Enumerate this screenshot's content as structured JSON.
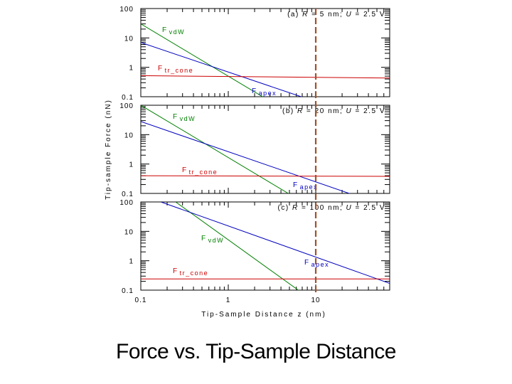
{
  "caption": "Force vs. Tip-Sample Distance",
  "chart_data": {
    "type": "line",
    "xscale": "log",
    "yscale": "log",
    "xlim": [
      0.1,
      70
    ],
    "ylim": [
      0.1,
      100
    ],
    "xlabel": "Tip-Sample Distance z (nm)",
    "ylabel": "Tip-sample Force (nN)",
    "x_tick_labels": [
      "0.1",
      "1",
      "10"
    ],
    "y_tick_labels": [
      "0.1",
      "1",
      "10",
      "100"
    ],
    "vertical_marker": {
      "x": 10,
      "color": "#a0522d",
      "style": "dashed"
    },
    "colors": {
      "vdw": "#008000",
      "apex": "#0000c0",
      "cone": "#cc0000",
      "marker": "#a0522d"
    },
    "panels": [
      {
        "title": "(a) R = 5 nm; U = 2.5 V",
        "title_parts": [
          "(a) ",
          "R",
          " = 5 nm; ",
          "U",
          " = 2.5 V"
        ],
        "series": [
          {
            "name": "FvdW",
            "label_main": "F",
            "label_sub": "vdW",
            "color": "#008000",
            "x": [
              0.1,
              2.8
            ],
            "y": [
              30,
              0.08
            ]
          },
          {
            "name": "Fapex",
            "label_main": "F",
            "label_sub": "apex",
            "color": "#0000c0",
            "x": [
              0.1,
              8.5
            ],
            "y": [
              7,
              0.08
            ]
          },
          {
            "name": "Ftr_cone",
            "label_main": "F",
            "label_sub": "tr_cone",
            "color": "#cc0000",
            "x": [
              0.1,
              70
            ],
            "y": [
              0.52,
              0.43
            ]
          }
        ]
      },
      {
        "title": "(b) R = 20 nm; U = 2.5 V",
        "title_parts": [
          "(b) ",
          "R",
          " = 20 nm; ",
          "U",
          " = 2.5 V"
        ],
        "series": [
          {
            "name": "FvdW",
            "label_main": "F",
            "label_sub": "vdW",
            "color": "#008000",
            "x": [
              0.1,
              5.5
            ],
            "y": [
              100,
              0.08
            ]
          },
          {
            "name": "Fapex",
            "label_main": "F",
            "label_sub": "apex",
            "color": "#0000c0",
            "x": [
              0.1,
              30
            ],
            "y": [
              28,
              0.08
            ]
          },
          {
            "name": "Ftr_cone",
            "label_main": "F",
            "label_sub": "tr_cone",
            "color": "#cc0000",
            "x": [
              0.1,
              70
            ],
            "y": [
              0.4,
              0.38
            ]
          }
        ]
      },
      {
        "title": "(c) R = 100 nm; U = 2.5 V",
        "title_parts": [
          "(c) ",
          "R",
          " = 100 nm; ",
          "U",
          " = 2.5 V"
        ],
        "series": [
          {
            "name": "FvdW",
            "label_main": "F",
            "label_sub": "vdW",
            "color": "#008000",
            "x": [
              0.25,
              7
            ],
            "y": [
              100,
              0.08
            ]
          },
          {
            "name": "Fapex",
            "label_main": "F",
            "label_sub": "apex",
            "color": "#0000c0",
            "x": [
              0.17,
              70
            ],
            "y": [
              100,
              0.17
            ]
          },
          {
            "name": "Ftr_cone",
            "label_main": "F",
            "label_sub": "tr_cone",
            "color": "#cc0000",
            "x": [
              0.1,
              70
            ],
            "y": [
              0.24,
              0.24
            ]
          }
        ]
      }
    ]
  }
}
